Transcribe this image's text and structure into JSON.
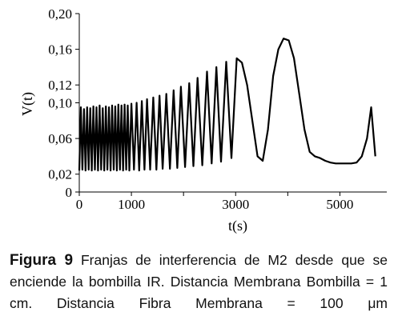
{
  "chart_data": {
    "type": "line",
    "title": "",
    "xlabel": "t(s)",
    "ylabel": "V(t)",
    "xlim": [
      0,
      5900
    ],
    "ylim": [
      0,
      0.2
    ],
    "x_ticks": [
      0,
      1000,
      3000,
      5000
    ],
    "x_tick_labels": [
      "0",
      "1000",
      "3000",
      "5000"
    ],
    "x_minor_ticks": [
      2000,
      4000
    ],
    "y_ticks": [
      0,
      0.02,
      0.06,
      0.1,
      0.12,
      0.16,
      0.2
    ],
    "y_tick_labels": [
      "0",
      "0,02",
      "0,06",
      "0,10",
      "0,12",
      "0,16",
      "0,20"
    ],
    "grid": false,
    "legend": "none",
    "line_color": "#000000",
    "series": [
      {
        "x": [
          0,
          30,
          60,
          90,
          120,
          150,
          180,
          210,
          240,
          270,
          300,
          330,
          360,
          390,
          420,
          450,
          480,
          510,
          540,
          570,
          600,
          630,
          660,
          690,
          720,
          750,
          780,
          810,
          840,
          870,
          900,
          930,
          960,
          1000,
          1050,
          1100,
          1150,
          1200,
          1250,
          1300,
          1360,
          1420,
          1480,
          1540,
          1600,
          1670,
          1740,
          1810,
          1880,
          1950,
          2030,
          2110,
          2190,
          2270,
          2360,
          2450,
          2540,
          2630,
          2720,
          2820,
          2920,
          3020,
          3120,
          3220,
          3320,
          3420,
          3520,
          3620,
          3720,
          3820,
          3920,
          4020,
          4120,
          4220,
          4320,
          4420,
          4520,
          4620,
          4720,
          4820,
          4920,
          5020,
          5120,
          5220,
          5320,
          5420,
          5520,
          5600,
          5680
        ],
        "values": [
          0.024,
          0.095,
          0.025,
          0.093,
          0.024,
          0.095,
          0.025,
          0.094,
          0.024,
          0.096,
          0.025,
          0.095,
          0.024,
          0.097,
          0.025,
          0.094,
          0.024,
          0.096,
          0.025,
          0.095,
          0.024,
          0.097,
          0.025,
          0.096,
          0.024,
          0.098,
          0.025,
          0.097,
          0.024,
          0.098,
          0.025,
          0.097,
          0.024,
          0.099,
          0.025,
          0.1,
          0.024,
          0.102,
          0.025,
          0.104,
          0.025,
          0.106,
          0.025,
          0.108,
          0.026,
          0.11,
          0.026,
          0.114,
          0.027,
          0.118,
          0.028,
          0.122,
          0.029,
          0.128,
          0.03,
          0.135,
          0.032,
          0.14,
          0.034,
          0.146,
          0.038,
          0.15,
          0.145,
          0.12,
          0.08,
          0.04,
          0.035,
          0.07,
          0.13,
          0.16,
          0.172,
          0.17,
          0.15,
          0.11,
          0.07,
          0.045,
          0.04,
          0.038,
          0.035,
          0.033,
          0.032,
          0.032,
          0.032,
          0.032,
          0.033,
          0.04,
          0.06,
          0.095,
          0.04
        ]
      }
    ]
  },
  "caption": {
    "figure_label": "Figura 9",
    "text": "Franjas de interferencia de M2 desde que se enciende la bombilla IR. Distancia Membrana Bombilla = 1 cm. Distancia Fibra Membrana = 100 μm"
  }
}
